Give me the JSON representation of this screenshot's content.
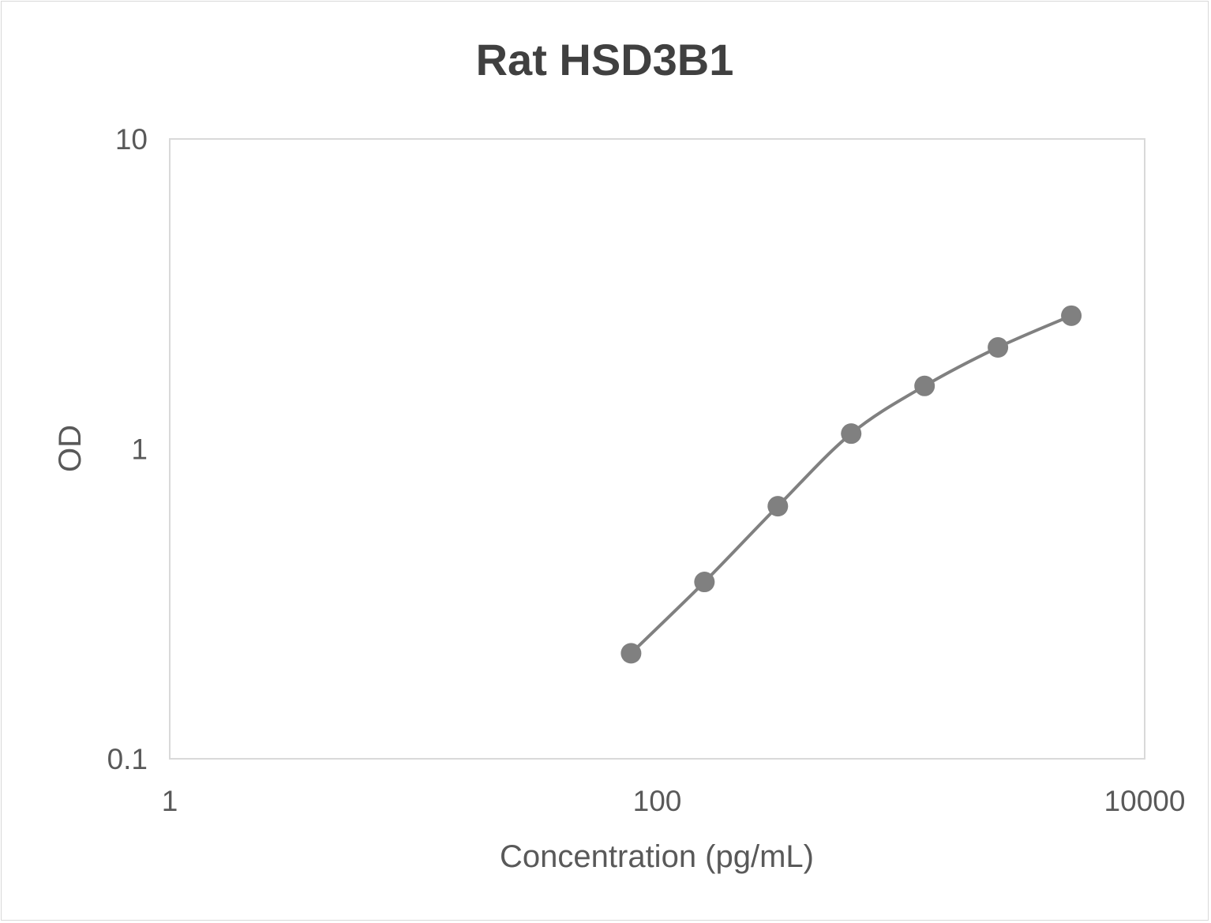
{
  "chart_data": {
    "type": "line",
    "title": "Rat HSD3B1",
    "xlabel": "Concentration (pg/mL)",
    "ylabel": "OD",
    "x_scale": "log",
    "y_scale": "log",
    "xlim": [
      1,
      10000
    ],
    "ylim": [
      0.1,
      10
    ],
    "x_ticks": [
      "1",
      "100",
      "10000"
    ],
    "y_ticks": [
      "0.1",
      "1",
      "10"
    ],
    "grid": false,
    "legend": "none",
    "smoothed": true,
    "series": [
      {
        "color": "#808080",
        "x": [
          78.125,
          156.25,
          312.5,
          625,
          1250,
          2500,
          5000
        ],
        "y": [
          0.219,
          0.372,
          0.653,
          1.12,
          1.596,
          2.125,
          2.69
        ]
      }
    ]
  }
}
